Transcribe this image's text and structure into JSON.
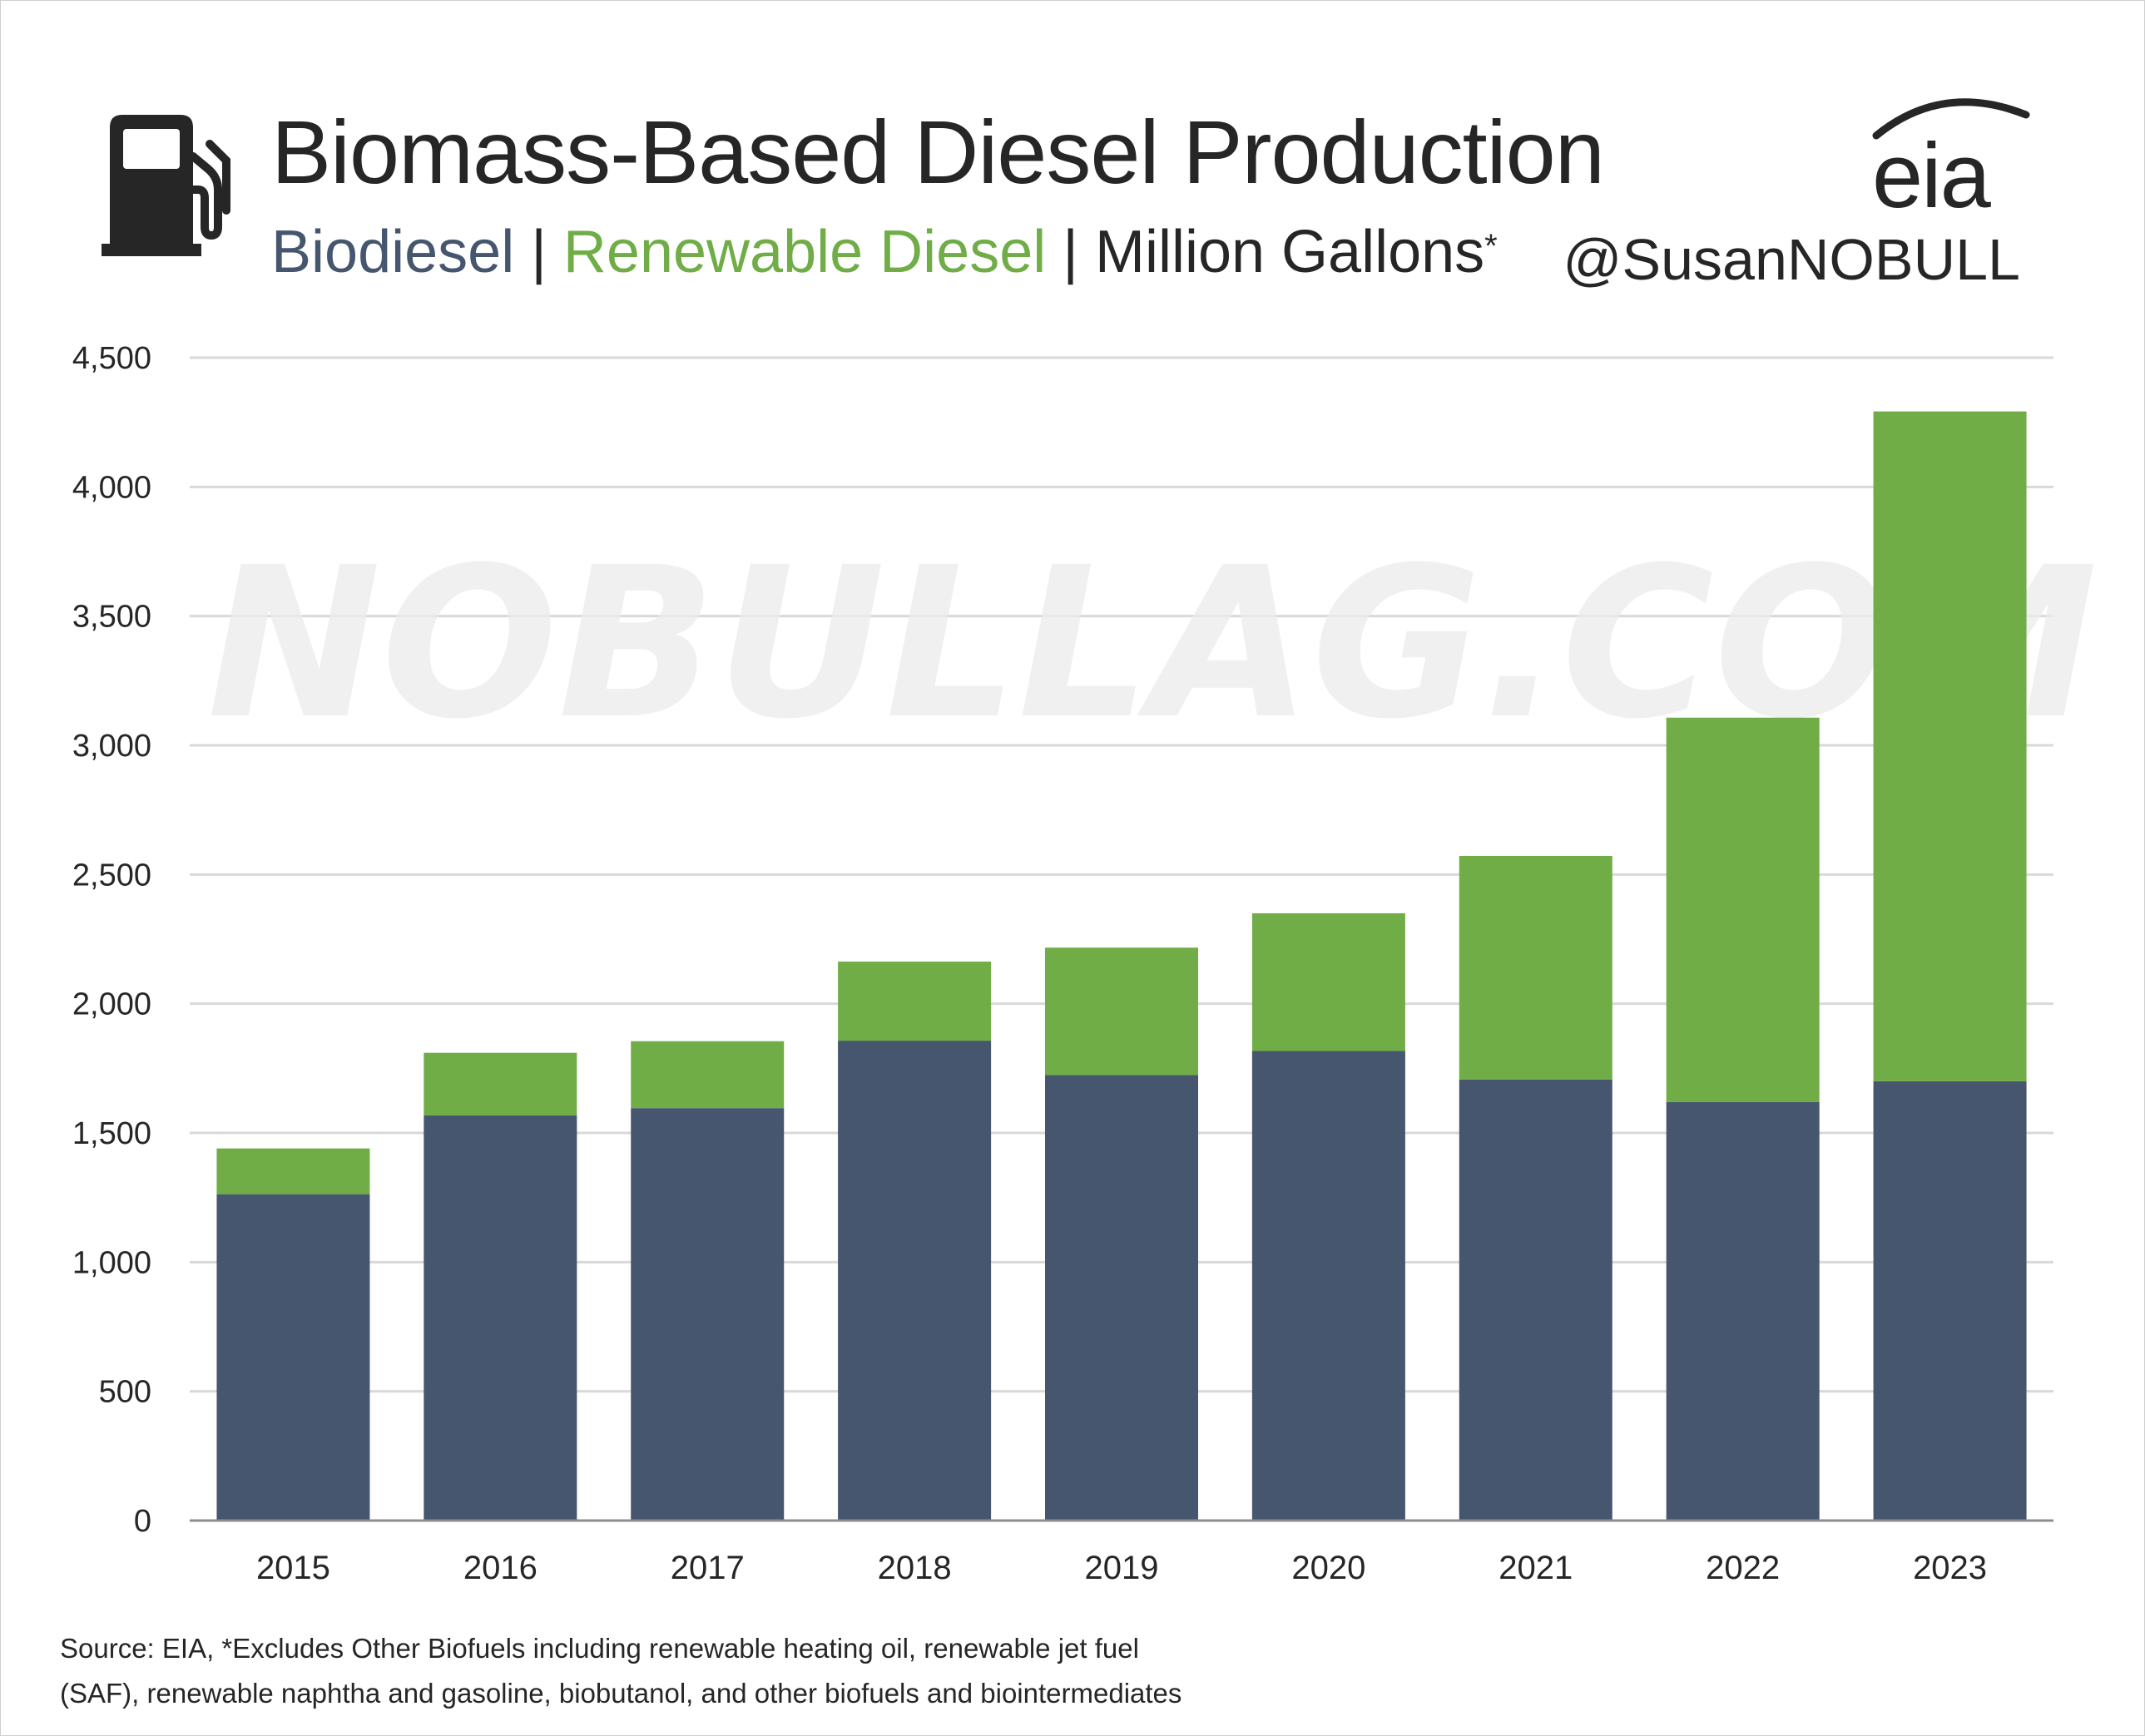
{
  "header": {
    "title": "Biomass-Based Diesel Production",
    "subtitle": {
      "series1": "Biodiesel",
      "separator": "|",
      "series2": "Renewable Diesel",
      "unit": "Million Gallons",
      "asterisk": "*"
    },
    "logo_text": "eia",
    "handle": "@SusanNOBULL",
    "icon": "fuel-pump-icon"
  },
  "watermark": "NOBULLAG.COM",
  "footer": {
    "source_line1": "Source: EIA, *Excludes Other Biofuels including renewable heating oil, renewable jet fuel",
    "source_line2": "(SAF), renewable naphtha and gasoline, biobutanol, and other biofuels and biointermediates"
  },
  "colors": {
    "biodiesel": "#45566e",
    "renewable_diesel": "#70ad47",
    "grid": "#d9d9d9",
    "axis": "#8c8c8c",
    "text": "#262626"
  },
  "chart_data": {
    "type": "bar",
    "stacked": true,
    "categories": [
      "2015",
      "2016",
      "2017",
      "2018",
      "2019",
      "2020",
      "2021",
      "2022",
      "2023"
    ],
    "series": [
      {
        "name": "Biodiesel",
        "color": "#45566e",
        "values": [
          1263,
          1568,
          1596,
          1857,
          1724,
          1817,
          1707,
          1620,
          1700
        ]
      },
      {
        "name": "Renewable Diesel",
        "color": "#70ad47",
        "values": [
          177,
          242,
          259,
          306,
          493,
          533,
          865,
          1487,
          2592
        ]
      }
    ],
    "ylim": [
      0,
      4500
    ],
    "yticks": [
      0,
      500,
      1000,
      1500,
      2000,
      2500,
      3000,
      3500,
      4000,
      4500
    ],
    "ytick_labels": [
      "0",
      "500",
      "1,000",
      "1,500",
      "2,000",
      "2,500",
      "3,000",
      "3,500",
      "4,000",
      "4,500"
    ],
    "grid": true,
    "xlabel": "",
    "ylabel": ""
  }
}
